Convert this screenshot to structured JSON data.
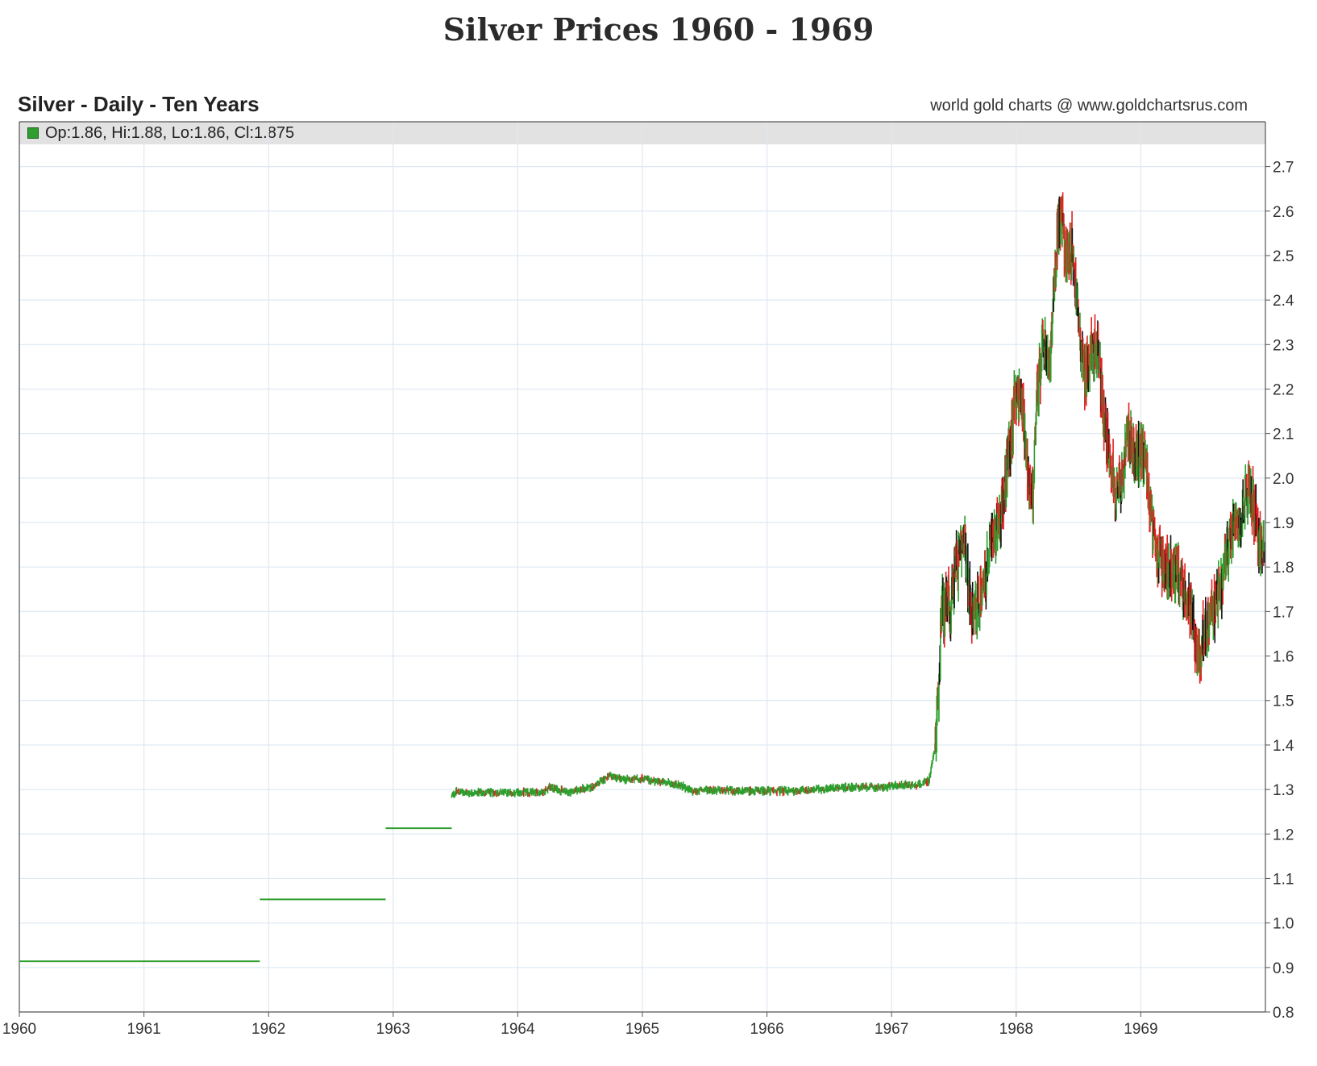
{
  "page": {
    "title": "Silver Prices 1960 - 1969"
  },
  "chart_header": {
    "title": "Silver - Daily - Ten Years",
    "source": "world gold charts @ www.goldchartsrus.com",
    "ohlc_readout": "Op:1.86, Hi:1.88, Lo:1.86, Cl:1.875"
  },
  "colors": {
    "up": "#2e9e2e",
    "down": "#e02020",
    "neutral": "#111111",
    "grid": "#dde8f2",
    "axis": "#555555"
  },
  "chart_data": {
    "type": "line",
    "title": "Silver - Daily - Ten Years",
    "xlabel": "",
    "ylabel": "",
    "xlim": [
      1960,
      1970
    ],
    "ylim": [
      0.8,
      2.75
    ],
    "x_ticks": [
      "1960",
      "1961",
      "1962",
      "1963",
      "1964",
      "1965",
      "1966",
      "1967",
      "1968",
      "1969"
    ],
    "y_ticks": [
      "0.8",
      "0.9",
      "1.0",
      "1.1",
      "1.2",
      "1.3",
      "1.4",
      "1.5",
      "1.6",
      "1.7",
      "1.8",
      "1.9",
      "2.0",
      "2.1",
      "2.2",
      "2.3",
      "2.4",
      "2.5",
      "2.6",
      "2.7"
    ],
    "grid": true,
    "y_axis_side": "right",
    "flat_segments": [
      {
        "x_start": 1960.0,
        "x_end": 1961.93,
        "value": 0.914
      },
      {
        "x_start": 1961.93,
        "x_end": 1962.94,
        "value": 1.053
      },
      {
        "x_start": 1962.94,
        "x_end": 1963.47,
        "value": 1.213
      }
    ],
    "daily_series": {
      "x": [
        1963.47,
        1963.5,
        1963.6,
        1963.8,
        1964.0,
        1964.2,
        1964.25,
        1964.4,
        1964.5,
        1964.6,
        1964.7,
        1964.75,
        1964.85,
        1965.0,
        1965.1,
        1965.2,
        1965.3,
        1965.4,
        1965.5,
        1965.6,
        1965.8,
        1966.0,
        1966.2,
        1966.4,
        1966.6,
        1966.8,
        1966.95,
        1967.0,
        1967.1,
        1967.2,
        1967.3,
        1967.35,
        1967.38,
        1967.4,
        1967.42,
        1967.45,
        1967.47,
        1967.5,
        1967.55,
        1967.58,
        1967.62,
        1967.65,
        1967.7,
        1967.75,
        1967.8,
        1967.85,
        1967.9,
        1967.93,
        1967.96,
        1968.0,
        1968.05,
        1968.1,
        1968.13,
        1968.17,
        1968.22,
        1968.27,
        1968.3,
        1968.33,
        1968.37,
        1968.4,
        1968.45,
        1968.5,
        1968.55,
        1968.6,
        1968.65,
        1968.7,
        1968.75,
        1968.8,
        1968.85,
        1968.9,
        1968.95,
        1969.0,
        1969.05,
        1969.1,
        1969.15,
        1969.2,
        1969.25,
        1969.3,
        1969.35,
        1969.4,
        1969.45,
        1969.48,
        1969.5,
        1969.55,
        1969.6,
        1969.65,
        1969.7,
        1969.75,
        1969.8,
        1969.85,
        1969.9,
        1969.95,
        1969.99
      ],
      "y": [
        1.285,
        1.295,
        1.293,
        1.293,
        1.293,
        1.294,
        1.305,
        1.294,
        1.3,
        1.305,
        1.325,
        1.33,
        1.322,
        1.325,
        1.318,
        1.315,
        1.31,
        1.295,
        1.3,
        1.298,
        1.297,
        1.297,
        1.297,
        1.3,
        1.305,
        1.305,
        1.305,
        1.308,
        1.31,
        1.31,
        1.32,
        1.4,
        1.55,
        1.72,
        1.7,
        1.75,
        1.7,
        1.78,
        1.82,
        1.85,
        1.75,
        1.7,
        1.72,
        1.78,
        1.85,
        1.9,
        1.95,
        2.05,
        2.1,
        2.2,
        2.15,
        2.0,
        1.95,
        2.2,
        2.3,
        2.25,
        2.4,
        2.55,
        2.58,
        2.5,
        2.52,
        2.35,
        2.22,
        2.28,
        2.3,
        2.15,
        2.05,
        1.97,
        2.0,
        2.1,
        2.05,
        2.05,
        2.02,
        1.85,
        1.82,
        1.8,
        1.8,
        1.78,
        1.75,
        1.7,
        1.62,
        1.6,
        1.65,
        1.68,
        1.72,
        1.75,
        1.85,
        1.92,
        1.9,
        1.98,
        1.95,
        1.85,
        1.875
      ]
    },
    "annotations": {
      "last_close": 1.875,
      "peak": 2.67,
      "peak_x": 1968.37
    }
  }
}
